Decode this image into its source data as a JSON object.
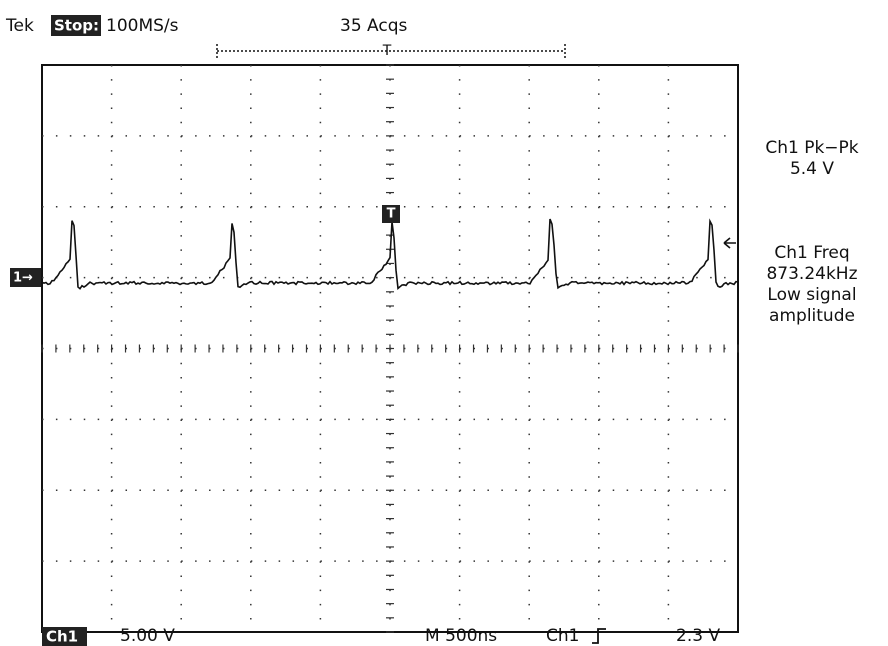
{
  "header": {
    "brand": "Tek",
    "status": "Stop:",
    "sample_rate": "100MS/s",
    "acquisitions": "35 Acqs"
  },
  "measurements": {
    "pk_pk_label": "Ch1 Pk−Pk",
    "pk_pk_value": "5.4 V",
    "freq_label": "Ch1 Freq",
    "freq_value": "873.24kHz",
    "note_line1": "Low signal",
    "note_line2": "amplitude"
  },
  "markers": {
    "ground": "1→",
    "trigger": "T"
  },
  "footer": {
    "channel": "Ch1",
    "volts_per_div": "5.00 V",
    "timebase": "M 500ns",
    "trigger_source": "Ch1",
    "trigger_level": "2.3 V"
  }
}
